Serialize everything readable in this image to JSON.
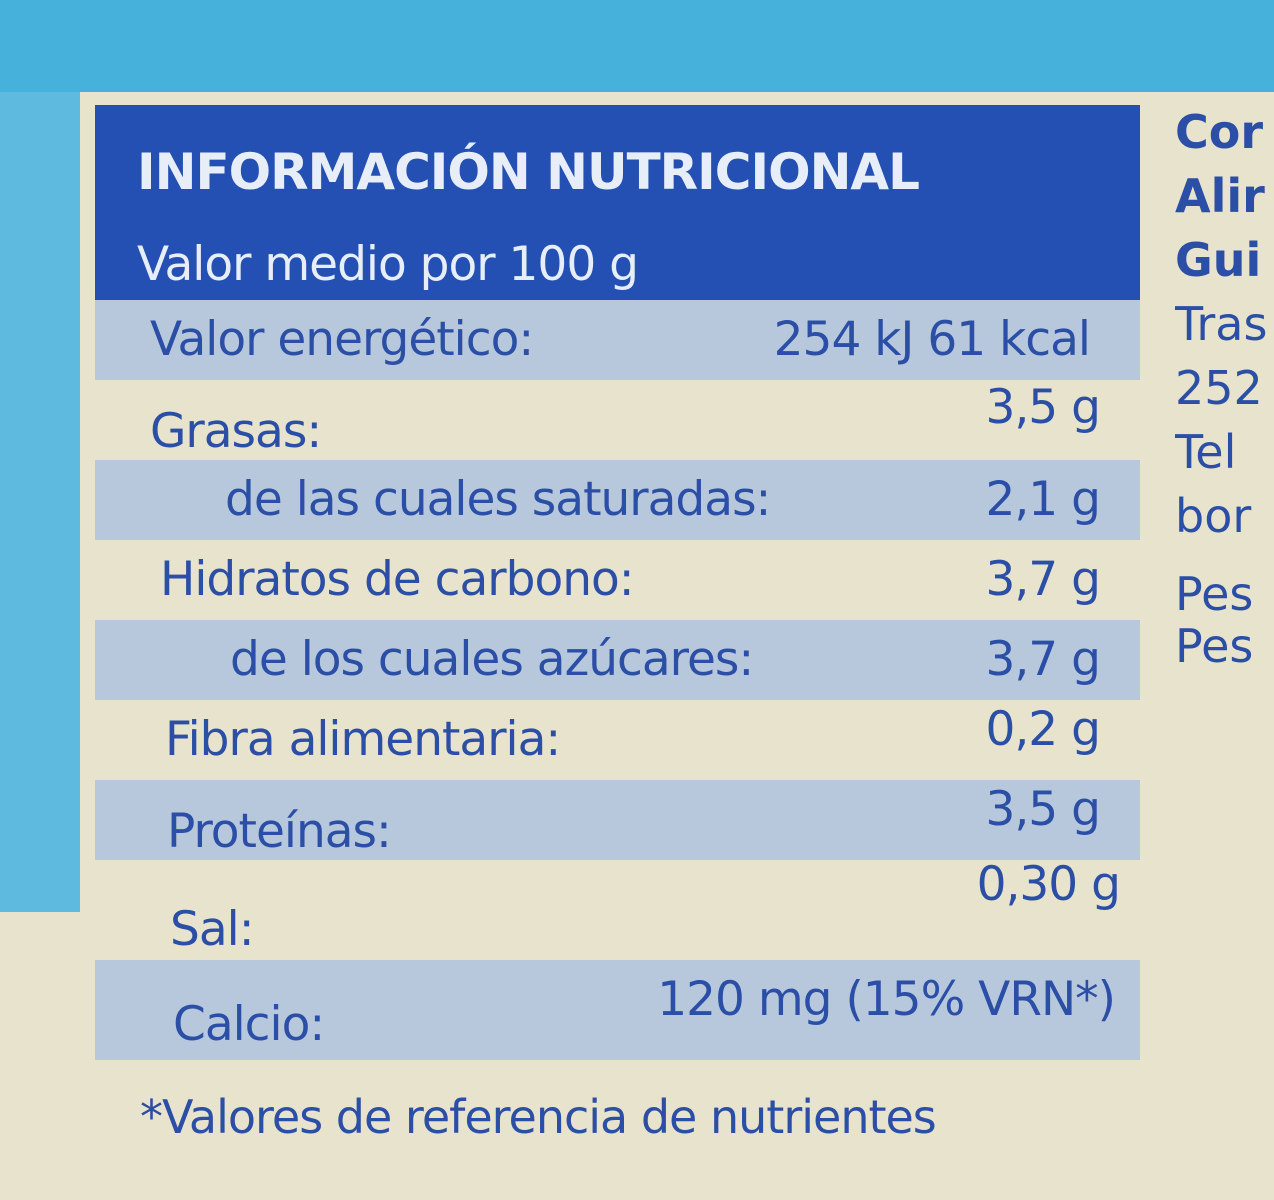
{
  "label": {
    "title": "INFORMACIÓN NUTRICIONAL",
    "subtitle": "Valor medio por 100 g",
    "rows": [
      {
        "label": "Valor energético:",
        "value": "254 kJ  61 kcal"
      },
      {
        "label": "Grasas:",
        "value": "3,5 g"
      },
      {
        "label": "de las cuales saturadas:",
        "value": "2,1 g"
      },
      {
        "label": "Hidratos de carbono:",
        "value": "3,7 g"
      },
      {
        "label": "de los cuales azúcares:",
        "value": "3,7 g"
      },
      {
        "label": "Fibra alimentaria:",
        "value": "0,2 g"
      },
      {
        "label": "Proteínas:",
        "value": "3,5 g"
      },
      {
        "label": "Sal:",
        "value": "0,30 g"
      },
      {
        "label": "Calcio:",
        "value": "120 mg (15% VRN*)"
      }
    ],
    "footnote": "*Valores de referencia de nutrientes"
  },
  "side_text": [
    "Cor",
    "Alir",
    "Gui",
    "Tras",
    "252",
    "Tel",
    "bor",
    "Pes",
    "Pes"
  ],
  "colors": {
    "header": "#2450b4",
    "text": "#2b4ea6",
    "shade": "#b8c8dc",
    "background": "#e8e3cc",
    "band": "#46b2db"
  }
}
